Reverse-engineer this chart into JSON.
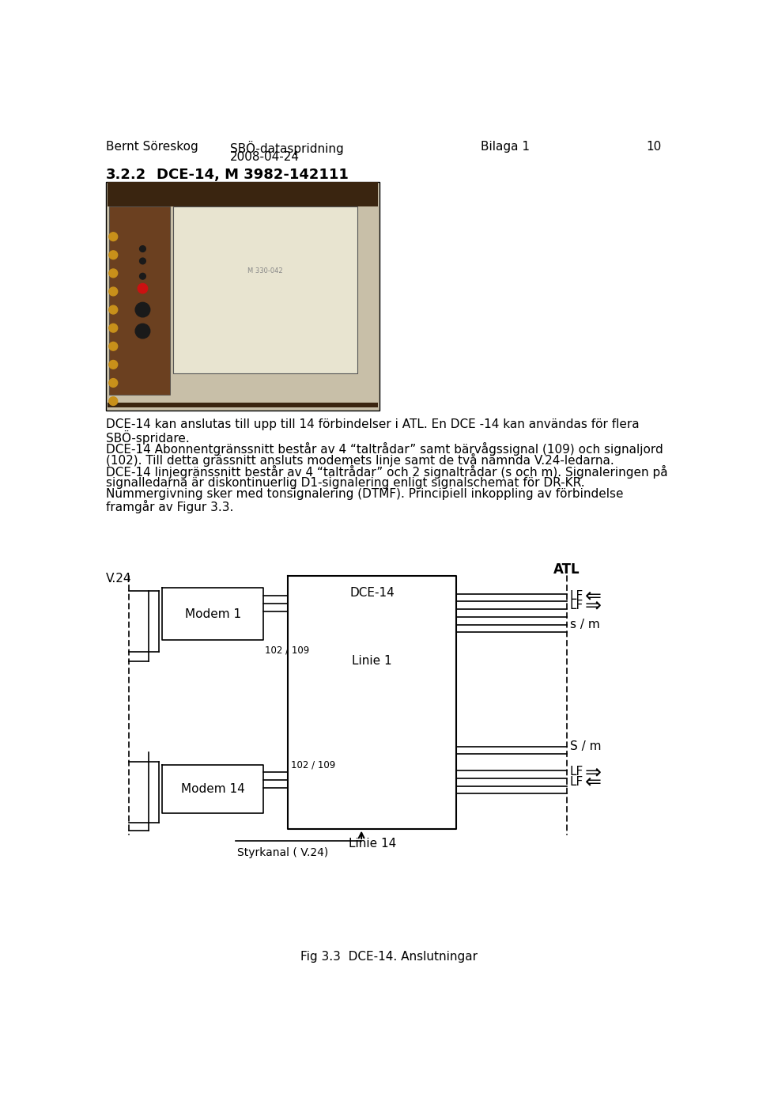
{
  "header_left": "Bernt Söreskog",
  "header_center_line1": "SBÖ-dataspridning",
  "header_center_line2": "2008-04-24",
  "header_bilaga": "Bilaga 1",
  "header_page": "10",
  "section_num": "3.2.2",
  "section_name": "DCE-14, M 3982-142111",
  "body_lines": [
    "DCE-14 kan anslutas till upp till 14 förbindelser i ATL. En DCE -14 kan användas för flera",
    "SBÖ-spridare.",
    "DCE-14 Abonnentgränssnitt består av 4 “taltrådar” samt bärvågssignal (109) och signaljord",
    "(102). Till detta grässnitt ansluts modemets linje samt de två nämnda V.24-ledarna.",
    "DCE-14 linjegränssnitt består av 4 “taltrådar” och 2 signaltrådar (s och m). Signaleringen på",
    "signalledarna är diskontinuerlig D1-signalering enligt signalschemat för DR-KR.",
    "Nummergivning sker med tonsignalering (DTMF). Principiell inkoppling av förbindelse",
    "framgår av Figur 3.3."
  ],
  "fig_caption": "Fig 3.3  DCE-14. Anslutningar",
  "label_v24": "V.24",
  "label_atl": "ATL",
  "label_modem1": "Modem 1",
  "label_modem14": "Modem 14",
  "label_dce14": "DCE-14",
  "label_linje1": "Linie 1",
  "label_linje14": "Linie 14",
  "label_102_109": "102 / 109",
  "label_styrkanal": "Styrkanal ( V.24)",
  "label_lf": "LF",
  "label_sm_top": "s / m",
  "label_sm_bot": "S / m",
  "bg_color": "#ffffff",
  "text_color": "#000000",
  "line_color": "#000000",
  "photo_bg": "#c8bfa8",
  "photo_dark": "#3a2510",
  "photo_panel": "#e8e4d0",
  "photo_side": "#6b4020"
}
